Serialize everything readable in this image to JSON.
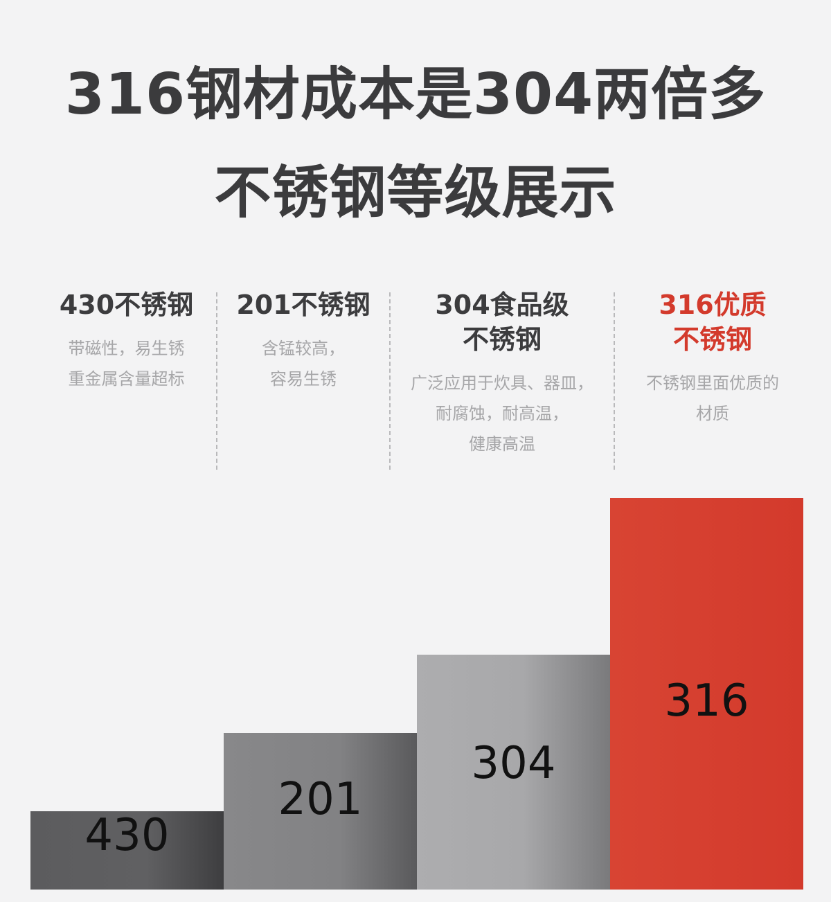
{
  "headline": {
    "line1": "316钢材成本是304两倍多",
    "line2": "不锈钢等级展示"
  },
  "grades": [
    {
      "name_lines": [
        "430不锈钢"
      ],
      "desc_lines": [
        "带磁性，易生锈",
        "重金属含量超标"
      ],
      "highlight": false
    },
    {
      "name_lines": [
        "201不锈钢"
      ],
      "desc_lines": [
        "含锰较高，",
        "容易生锈"
      ],
      "highlight": false
    },
    {
      "name_lines": [
        "304食品级",
        "不锈钢"
      ],
      "desc_lines": [
        "广泛应用于炊具、器皿，",
        "耐腐蚀，耐高温，",
        "健康高温"
      ],
      "highlight": false
    },
    {
      "name_lines": [
        "316优质",
        "不锈钢"
      ],
      "desc_lines": [
        "不锈钢里面优质的",
        "材质"
      ],
      "highlight": true
    }
  ],
  "chart_data": {
    "type": "bar",
    "categories": [
      "430",
      "201",
      "304",
      "316"
    ],
    "values": [
      1,
      2,
      3,
      5
    ],
    "bar_labels": [
      "430",
      "201",
      "304",
      "316"
    ],
    "colors": [
      "#5c5c5e",
      "#848486",
      "#aaaaac",
      "#d63f2f"
    ],
    "highlight_color": "#d33a2c"
  }
}
